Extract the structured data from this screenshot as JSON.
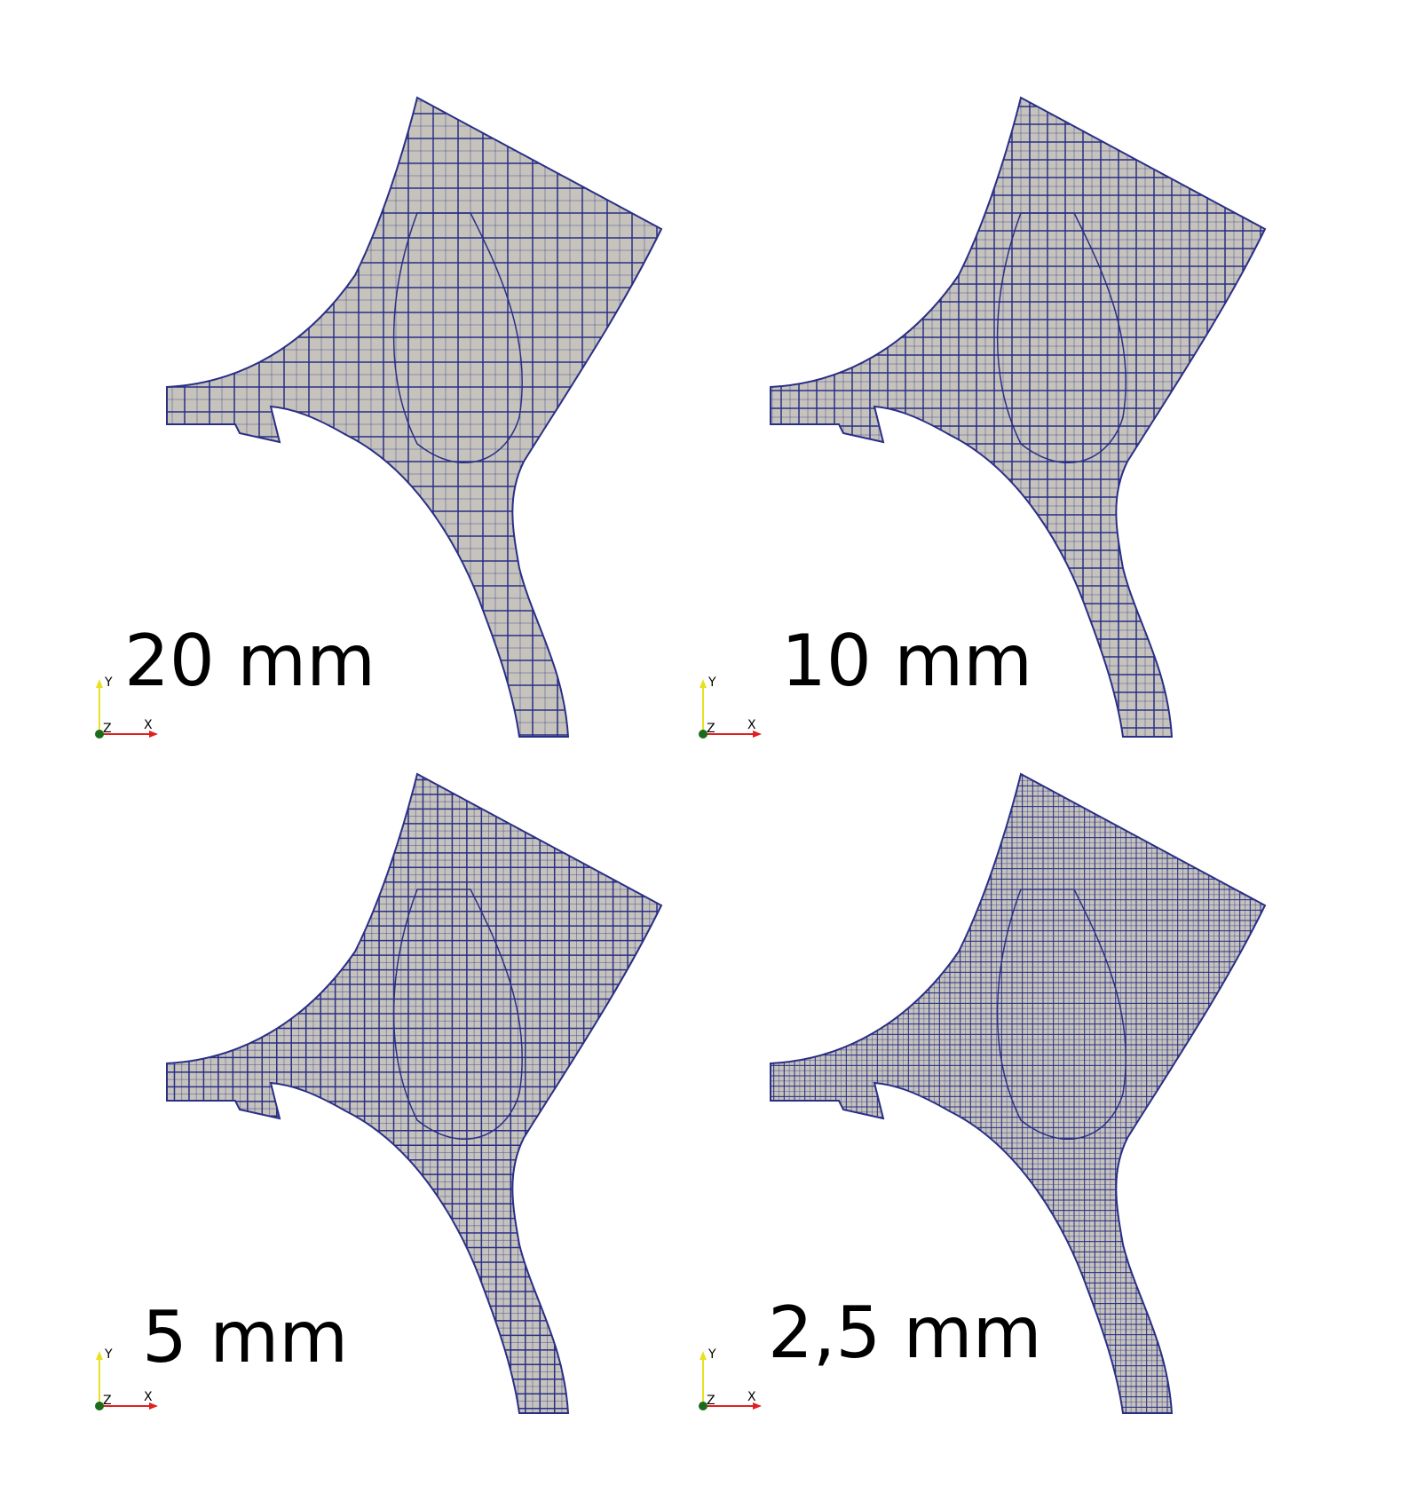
{
  "colors": {
    "mesh_fill": "#c6c3bd",
    "mesh_line": "#2a2f86",
    "axis_x": "#e02020",
    "axis_y": "#e8e020",
    "axis_origin": "#1a6b1a",
    "text": "#000000"
  },
  "panels": [
    {
      "label": "20 mm",
      "cell_size": 20,
      "grid_density": 1.0
    },
    {
      "label": "10 mm",
      "cell_size": 10,
      "grid_density": 1.4
    },
    {
      "label": "5 mm",
      "cell_size": 5,
      "grid_density": 1.7
    },
    {
      "label": "2,5 mm",
      "cell_size": 2.5,
      "grid_density": 2.4
    }
  ],
  "axes_triad": {
    "x_label": "X",
    "y_label": "Y",
    "z_label": "Z"
  }
}
